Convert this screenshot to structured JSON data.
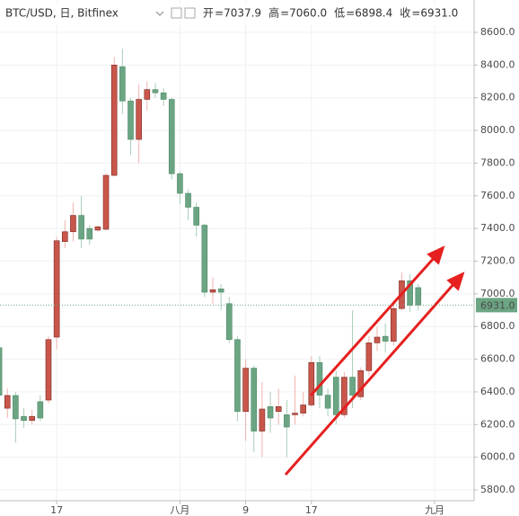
{
  "header": {
    "symbol": "BTC/USD, 日, Bitfinex",
    "ohlc": [
      {
        "label": "开",
        "value": "7037.9"
      },
      {
        "label": "高",
        "value": "7060.0"
      },
      {
        "label": "低",
        "value": "6898.4"
      },
      {
        "label": "收",
        "value": "6931.0"
      }
    ]
  },
  "chart_data": {
    "type": "candlestick",
    "x": [
      10,
      11,
      12,
      13,
      14,
      15,
      16,
      17,
      18,
      19,
      20,
      21,
      22,
      23,
      24,
      25,
      26,
      27,
      28,
      29,
      30,
      31,
      32,
      33,
      34,
      35,
      36,
      37,
      38,
      39,
      40,
      41,
      42,
      43,
      44,
      45,
      46,
      47,
      48,
      49,
      50,
      51,
      52,
      53,
      54,
      55,
      56,
      57,
      58,
      59,
      60,
      61
    ],
    "open": [
      6670,
      6300,
      6378,
      6250,
      6225,
      6340,
      6350,
      6735,
      7320,
      7380,
      7480,
      7400,
      7390,
      7395,
      7725,
      8390,
      8180,
      7945,
      8190,
      8250,
      8230,
      8190,
      7735,
      7615,
      7530,
      7420,
      7010,
      7030,
      6940,
      6720,
      6280,
      6545,
      6160,
      6310,
      6280,
      6260,
      6260,
      6270,
      6320,
      6580,
      6380,
      6490,
      6260,
      6490,
      6370,
      6530,
      6700,
      6740,
      6710,
      6910,
      7080,
      7037.9
    ],
    "high": [
      6700,
      6420,
      6400,
      6300,
      6290,
      6380,
      6740,
      7350,
      7450,
      7560,
      7600,
      7420,
      7420,
      7740,
      8450,
      8500,
      8200,
      8280,
      8300,
      8290,
      8260,
      8200,
      7750,
      7640,
      7560,
      7430,
      7100,
      7060,
      6980,
      6740,
      6600,
      6560,
      6460,
      6400,
      6420,
      6350,
      6500,
      6400,
      6620,
      6620,
      6420,
      6530,
      6520,
      6900,
      6550,
      6740,
      6800,
      6820,
      6950,
      7130,
      7120,
      7060
    ],
    "low": [
      6350,
      6240,
      6090,
      6180,
      6200,
      6220,
      6330,
      6660,
      7280,
      7320,
      7280,
      7300,
      7380,
      7390,
      7720,
      8100,
      7850,
      7800,
      8120,
      8200,
      8150,
      7700,
      7550,
      7450,
      7350,
      6980,
      6940,
      6900,
      6700,
      6220,
      6100,
      6030,
      6000,
      6150,
      6200,
      6000,
      6200,
      6250,
      6310,
      6300,
      6250,
      6200,
      6240,
      6300,
      6350,
      6500,
      6650,
      6640,
      6680,
      6900,
      6890,
      6898.4
    ],
    "close": [
      6380,
      6378,
      6235,
      6225,
      6250,
      6240,
      6720,
      7325,
      7380,
      7480,
      7335,
      7335,
      7410,
      7725,
      8400,
      8180,
      7945,
      8190,
      8250,
      8230,
      8190,
      7735,
      7615,
      7530,
      7420,
      7010,
      7025,
      7010,
      6720,
      6280,
      6545,
      6160,
      6295,
      6240,
      6310,
      6185,
      6270,
      6320,
      6580,
      6380,
      6300,
      6260,
      6490,
      6380,
      6530,
      6700,
      6735,
      6710,
      6910,
      7080,
      6930,
      6931
    ],
    "up_color": "#c9564b",
    "down_color": "#6ba583",
    "xlim": [
      10.1,
      67.8
    ],
    "xticks": [
      17,
      {
        "value": 32,
        "label": "八月"
      },
      {
        "value": 40,
        "label": "9"
      },
      {
        "value": 48,
        "label": "17"
      },
      {
        "value": 63,
        "label": "九月"
      }
    ],
    "ylim": [
      5734,
      8798
    ],
    "yticks": [
      {
        "value": 5800,
        "label": "5800.0"
      },
      {
        "value": 6000,
        "label": "6000.0"
      },
      {
        "value": 6200,
        "label": "6200.0"
      },
      {
        "value": 6400,
        "label": "6400.0"
      },
      {
        "value": 6600,
        "label": "6600.0"
      },
      {
        "value": 6800,
        "label": "6800.0"
      },
      {
        "value": 7000,
        "label": "7000.0"
      },
      {
        "value": 7200,
        "label": "7200.0"
      },
      {
        "value": 7400,
        "label": "7400.0"
      },
      {
        "value": 7600,
        "label": "7600.0"
      },
      {
        "value": 7800,
        "label": "7800.0"
      },
      {
        "value": 8000,
        "label": "8000.0"
      },
      {
        "value": 8200,
        "label": "8200.0"
      },
      {
        "value": 8400,
        "label": "8400.0"
      },
      {
        "value": 8600,
        "label": "8600.0"
      }
    ],
    "last_price": {
      "value": 6931,
      "label": "6931.0"
    },
    "grid": true
  }
}
